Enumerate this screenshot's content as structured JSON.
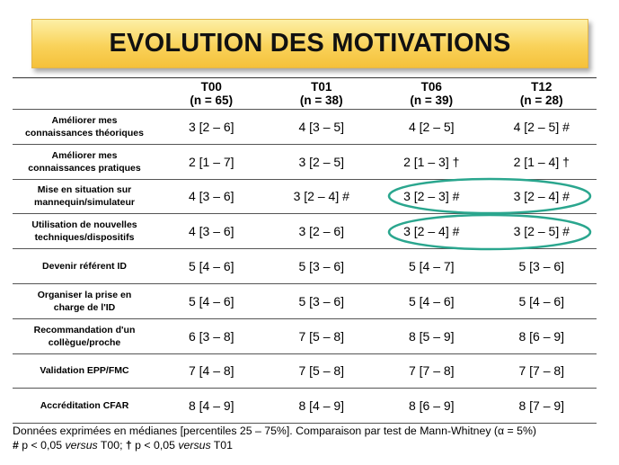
{
  "title": "EVOLUTION DES MOTIVATIONS",
  "columns": [
    {
      "name": "T00",
      "n": "(n = 65)"
    },
    {
      "name": "T01",
      "n": "(n = 38)"
    },
    {
      "name": "T06",
      "n": "(n = 39)"
    },
    {
      "name": "T12",
      "n": "(n = 28)"
    }
  ],
  "rows": [
    {
      "label_1": "Améliorer mes",
      "label_2": "connaissances théoriques",
      "values": [
        "3 [2 – 6]",
        "4 [3 – 5]",
        "4 [2 – 5]",
        "4 [2 – 5] #"
      ]
    },
    {
      "label_1": "Améliorer mes",
      "label_2": "connaissances pratiques",
      "values": [
        "2 [1 – 7]",
        "3 [2 – 5]",
        "2 [1 – 3] †",
        "2 [1 – 4] †"
      ]
    },
    {
      "label_1": "Mise en situation sur",
      "label_2": "mannequin/simulateur",
      "values": [
        "4 [3 – 6]",
        "3 [2 – 4] #",
        "3 [2 – 3] #",
        "3 [2 – 4] #"
      ]
    },
    {
      "label_1": "Utilisation de nouvelles",
      "label_2": "techniques/dispositifs",
      "values": [
        "4 [3 – 6]",
        "3 [2 – 6]",
        "3 [2 – 4] #",
        "3 [2 – 5] #"
      ]
    },
    {
      "label_1": "Devenir référent ID",
      "label_2": "",
      "values": [
        "5 [4 – 6]",
        "5 [3 – 6]",
        "5 [4 – 7]",
        "5 [3 – 6]"
      ]
    },
    {
      "label_1": "Organiser la prise en",
      "label_2": "charge de l'ID",
      "values": [
        "5 [4 – 6]",
        "5 [3 – 6]",
        "5 [4 – 6]",
        "5 [4 – 6]"
      ]
    },
    {
      "label_1": "Recommandation d'un",
      "label_2": "collègue/proche",
      "values": [
        "6 [3 – 8]",
        "7 [5 – 8]",
        "8 [5 – 9]",
        "8 [6 – 9]"
      ]
    },
    {
      "label_1": "Validation EPP/FMC",
      "label_2": "",
      "values": [
        "7 [4 – 8]",
        "7 [5 – 8]",
        "7 [7 – 8]",
        "7 [7 – 8]"
      ]
    },
    {
      "label_1": "Accréditation CFAR",
      "label_2": "",
      "values": [
        "8 [4 – 9]",
        "8 [4 – 9]",
        "8 [6 – 9]",
        "8 [7 – 9]"
      ]
    }
  ],
  "footnote": {
    "line1": "Données exprimées en médianes [percentiles 25 – 75%]. Comparaison par test de Mann-Whitney (α = 5%)",
    "hash_symbol": "#",
    "hash_text_a": " p < 0,05 ",
    "versus_1": "versus",
    "hash_text_b": " T00; ",
    "dagger_symbol": "†",
    "dagger_text_a": " p < 0,05 ",
    "versus_2": "versus",
    "dagger_text_b": " T01"
  },
  "highlight_color": "#2aa68e"
}
